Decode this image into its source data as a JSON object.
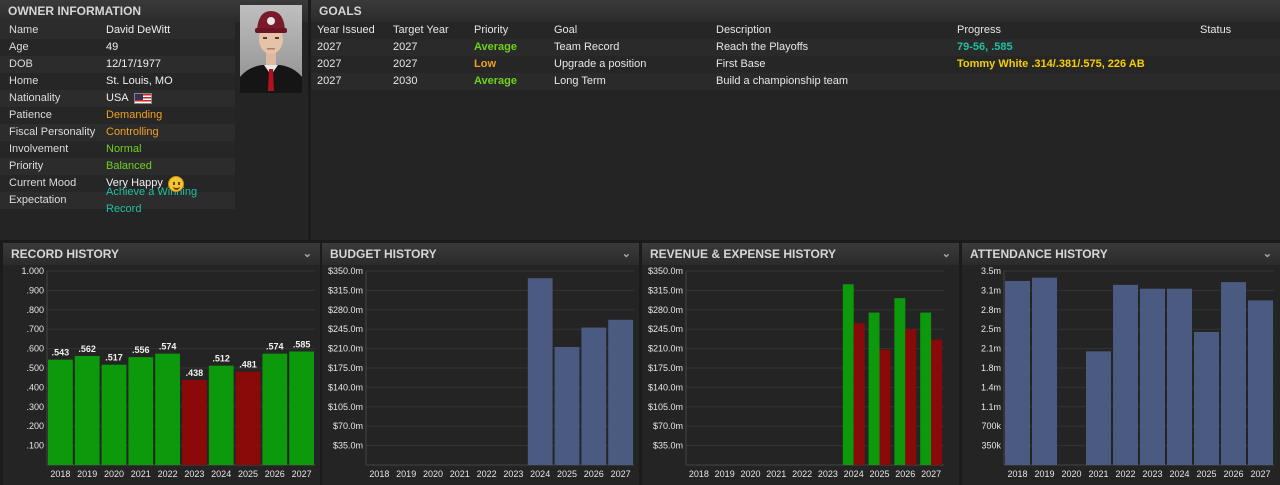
{
  "owner": {
    "title": "OWNER INFORMATION",
    "rows": [
      {
        "label": "Name",
        "value": "David DeWitt"
      },
      {
        "label": "Age",
        "value": "49"
      },
      {
        "label": "DOB",
        "value": "12/17/1977"
      },
      {
        "label": "Home",
        "value": "St. Louis, MO"
      },
      {
        "label": "Nationality",
        "value": "USA"
      },
      {
        "label": "Patience",
        "value": "Demanding"
      },
      {
        "label": "Fiscal Personality",
        "value": "Controlling"
      },
      {
        "label": "Involvement",
        "value": "Normal"
      },
      {
        "label": "Priority",
        "value": "Balanced"
      },
      {
        "label": "Current Mood",
        "value": "Very Happy"
      },
      {
        "label": "Expectation",
        "value": "Achieve a Winning Record"
      }
    ]
  },
  "goals": {
    "title": "GOALS",
    "columns": [
      "Year Issued",
      "Target Year",
      "Priority",
      "Goal",
      "Description",
      "Progress",
      "Status"
    ],
    "rows": [
      {
        "issued": "2027",
        "target": "2027",
        "priority": "Average",
        "goal": "Team Record",
        "description": "Reach the Playoffs",
        "progress": "79-56, .585",
        "status": ""
      },
      {
        "issued": "2027",
        "target": "2027",
        "priority": "Low",
        "goal": "Upgrade a position",
        "description": "First Base",
        "progress": "Tommy White .314/.381/.575, 226 AB",
        "status": ""
      },
      {
        "issued": "2027",
        "target": "2030",
        "priority": "Average",
        "goal": "Long Term",
        "description": "Build a championship team",
        "progress": "",
        "status": ""
      }
    ]
  },
  "colors": {
    "green": "#0c9a0c",
    "red": "#8a0a0a",
    "blue": "#4a5a80"
  },
  "chart_data": [
    {
      "type": "bar",
      "title": "RECORD HISTORY",
      "categories": [
        "2018",
        "2019",
        "2020",
        "2021",
        "2022",
        "2023",
        "2024",
        "2025",
        "2026",
        "2027"
      ],
      "values": [
        0.543,
        0.562,
        0.517,
        0.556,
        0.574,
        0.438,
        0.512,
        0.481,
        0.574,
        0.585
      ],
      "data_labels": [
        ".543",
        ".562",
        ".517",
        ".556",
        ".574",
        ".438",
        ".512",
        ".481",
        ".574",
        ".585"
      ],
      "ylim": [
        0,
        1
      ],
      "yticks": [
        ".100",
        ".200",
        ".300",
        ".400",
        ".500",
        ".600",
        ".700",
        ".800",
        ".900",
        "1.000"
      ]
    },
    {
      "type": "bar",
      "title": "BUDGET HISTORY",
      "categories": [
        "2018",
        "2019",
        "2020",
        "2021",
        "2022",
        "2023",
        "2024",
        "2025",
        "2026",
        "2027"
      ],
      "values": [
        0,
        0,
        0,
        0,
        0,
        0,
        337,
        213,
        248,
        262
      ],
      "ylim": [
        0,
        350
      ],
      "yticks": [
        "$35.0m",
        "$70.0m",
        "$105.0m",
        "$140.0m",
        "$175.0m",
        "$210.0m",
        "$245.0m",
        "$280.0m",
        "$315.0m",
        "$350.0m"
      ]
    },
    {
      "type": "bar",
      "title": "REVENUE & EXPENSE HISTORY",
      "categories": [
        "2018",
        "2019",
        "2020",
        "2021",
        "2022",
        "2023",
        "2024",
        "2025",
        "2026",
        "2027"
      ],
      "series": [
        {
          "name": "Revenue",
          "values": [
            0,
            0,
            0,
            0,
            0,
            0,
            326,
            275,
            301,
            275
          ]
        },
        {
          "name": "Expense",
          "values": [
            0,
            0,
            0,
            0,
            0,
            0,
            256,
            208,
            245,
            226
          ]
        }
      ],
      "ylim": [
        0,
        350
      ],
      "yticks": [
        "$35.0m",
        "$70.0m",
        "$105.0m",
        "$140.0m",
        "$175.0m",
        "$210.0m",
        "$245.0m",
        "$280.0m",
        "$315.0m",
        "$350.0m"
      ]
    },
    {
      "type": "bar",
      "title": "ATTENDANCE HISTORY",
      "categories": [
        "2018",
        "2019",
        "2020",
        "2021",
        "2022",
        "2023",
        "2024",
        "2025",
        "2026",
        "2027"
      ],
      "values": [
        3.32,
        3.38,
        0,
        2.05,
        3.25,
        3.18,
        3.18,
        2.4,
        3.3,
        2.97
      ],
      "ylim": [
        0,
        3.5
      ],
      "yticks": [
        "350k",
        "700k",
        "1.1m",
        "1.4m",
        "1.8m",
        "2.1m",
        "2.5m",
        "2.8m",
        "3.1m",
        "3.5m"
      ]
    }
  ]
}
